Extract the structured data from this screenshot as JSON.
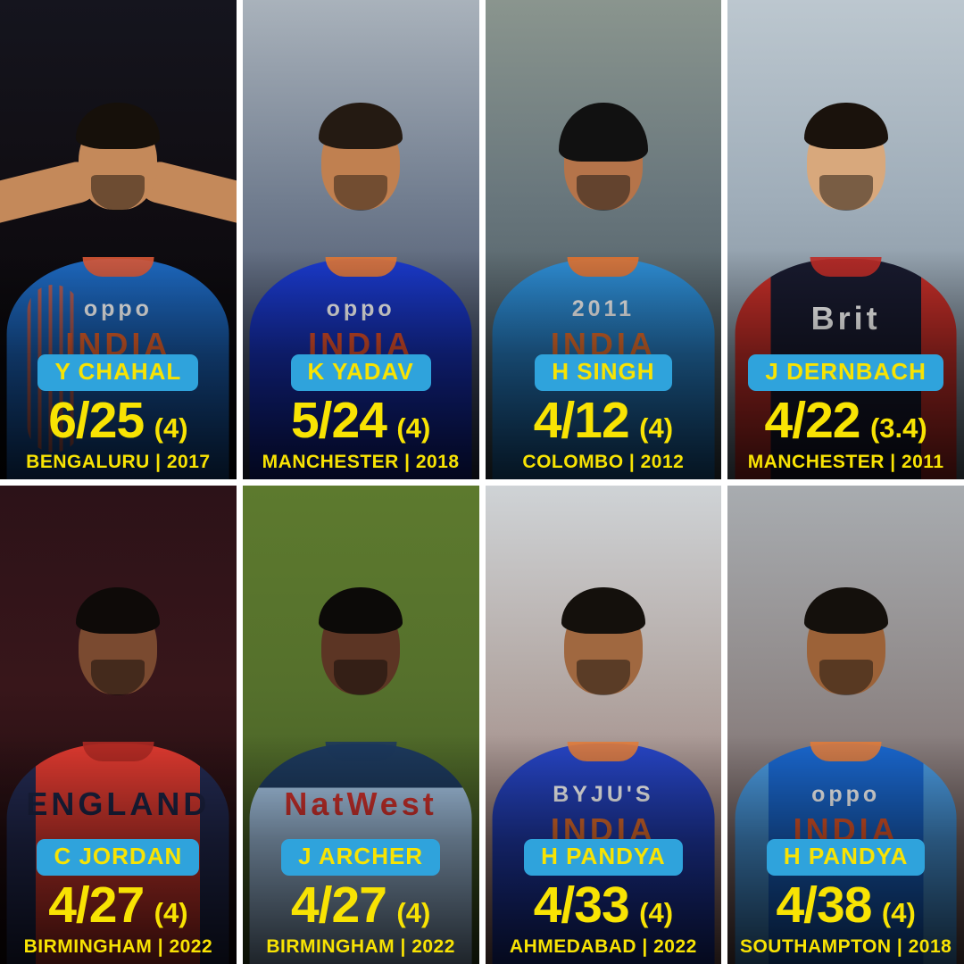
{
  "accent": {
    "badge_bg": "#2FA3DC",
    "highlight": "#F8E303",
    "gutter": "#FFFFFF"
  },
  "cells": [
    {
      "name": "Y CHAHAL",
      "figures": "6/25",
      "overs": "(4)",
      "venue": "BENGALURU | 2017",
      "photo": {
        "sponsor": "oppo",
        "team": "INDIA",
        "colors": {
          "bg_top": "#15151e",
          "bg_mid": "#100d12",
          "bg_bottom": "#060508",
          "jersey": "#1e6bc4",
          "jersey_shade": "#15509c",
          "accent": "#e05a36",
          "skin": "#c4895a",
          "hair": "#16100a",
          "sponsor_color": "#ffffff",
          "team_color": "#f2672e"
        }
      }
    },
    {
      "name": "K YADAV",
      "figures": "5/24",
      "overs": "(4)",
      "venue": "MANCHESTER | 2018",
      "photo": {
        "sponsor": "oppo",
        "team": "INDIA",
        "colors": {
          "bg_top": "#a9b2bb",
          "bg_mid": "#717d8f",
          "bg_bottom": "#2c3550",
          "jersey": "#1b3bcf",
          "jersey_shade": "#1226a0",
          "accent": "#e87a35",
          "skin": "#c08050",
          "hair": "#241a12",
          "sponsor_color": "#ffffff",
          "team_color": "#f0552f"
        }
      }
    },
    {
      "name": "H SINGH",
      "figures": "4/12",
      "overs": "(4)",
      "venue": "COLOMBO | 2012",
      "photo": {
        "sponsor": "2011",
        "team": "INDIA",
        "colors": {
          "bg_top": "#8a958e",
          "bg_mid": "#68767c",
          "bg_bottom": "#3c4a52",
          "jersey": "#2f8fd6",
          "jersey_shade": "#1f6eb4",
          "accent": "#e87430",
          "skin": "#b5744a",
          "hair": "#111111",
          "sponsor_color": "#f8f8f8",
          "team_color": "#f07430"
        }
      }
    },
    {
      "name": "J DERNBACH",
      "figures": "4/22",
      "overs": "(3.4)",
      "venue": "MANCHESTER | 2011",
      "photo": {
        "sponsor": "",
        "team": "Brit",
        "colors": {
          "bg_top": "#bcc7cf",
          "bg_mid": "#9fadb9",
          "bg_bottom": "#6e7c8a",
          "jersey": "#181a2e",
          "jersey_shade": "#101222",
          "accent": "#c42e28",
          "skin": "#d8a87c",
          "hair": "#1a120c",
          "sponsor_color": "#ffffff",
          "team_color": "#ffffff"
        }
      }
    },
    {
      "name": "C JORDAN",
      "figures": "4/27",
      "overs": "(4)",
      "venue": "BIRMINGHAM | 2022",
      "photo": {
        "sponsor": "",
        "team": "ENGLAND",
        "colors": {
          "bg_top": "#2c1218",
          "bg_mid": "#38161a",
          "bg_bottom": "#120608",
          "jersey": "#e03a30",
          "jersey_shade": "#232a52",
          "accent": "#b02a24",
          "skin": "#7a4a30",
          "hair": "#0e0a08",
          "sponsor_color": "#ffffff",
          "team_color": "#1d2444"
        }
      }
    },
    {
      "name": "J ARCHER",
      "figures": "4/27",
      "overs": "(4)",
      "venue": "BIRMINGHAM | 2022",
      "photo": {
        "sponsor": "",
        "team": "NatWest",
        "colors": {
          "bg_top": "#5d7a2e",
          "bg_mid": "#55702c",
          "bg_bottom": "#3c5220",
          "jersey": "#a8c8e8",
          "jersey_shade": "#1d3a5e",
          "accent": "#1d3a5e",
          "skin": "#5c3524",
          "hair": "#0c0a08",
          "sponsor_color": "#ffffff",
          "team_color": "#d6332e"
        }
      }
    },
    {
      "name": "H PANDYA",
      "figures": "4/33",
      "overs": "(4)",
      "venue": "AHMEDABAD | 2022",
      "photo": {
        "sponsor": "BYJU'S",
        "team": "INDIA",
        "colors": {
          "bg_top": "#cfd3d6",
          "bg_mid": "#b3a8a4",
          "bg_bottom": "#8c6460",
          "jersey": "#2746c8",
          "jersey_shade": "#1c34a0",
          "accent": "#e8803c",
          "skin": "#a06840",
          "hair": "#14100c",
          "sponsor_color": "#ffffff",
          "team_color": "#f07430"
        }
      }
    },
    {
      "name": "H PANDYA",
      "figures": "4/38",
      "overs": "(4)",
      "venue": "SOUTHAMPTON | 2018",
      "photo": {
        "sponsor": "oppo",
        "team": "INDIA",
        "colors": {
          "bg_top": "#a8acb0",
          "bg_mid": "#908a8a",
          "bg_bottom": "#6e5250",
          "jersey": "#1a68d0",
          "jersey_shade": "#4a9ae0",
          "accent": "#e8803c",
          "skin": "#9c6238",
          "hair": "#14100c",
          "sponsor_color": "#ffffff",
          "team_color": "#f05c2c"
        }
      }
    }
  ]
}
